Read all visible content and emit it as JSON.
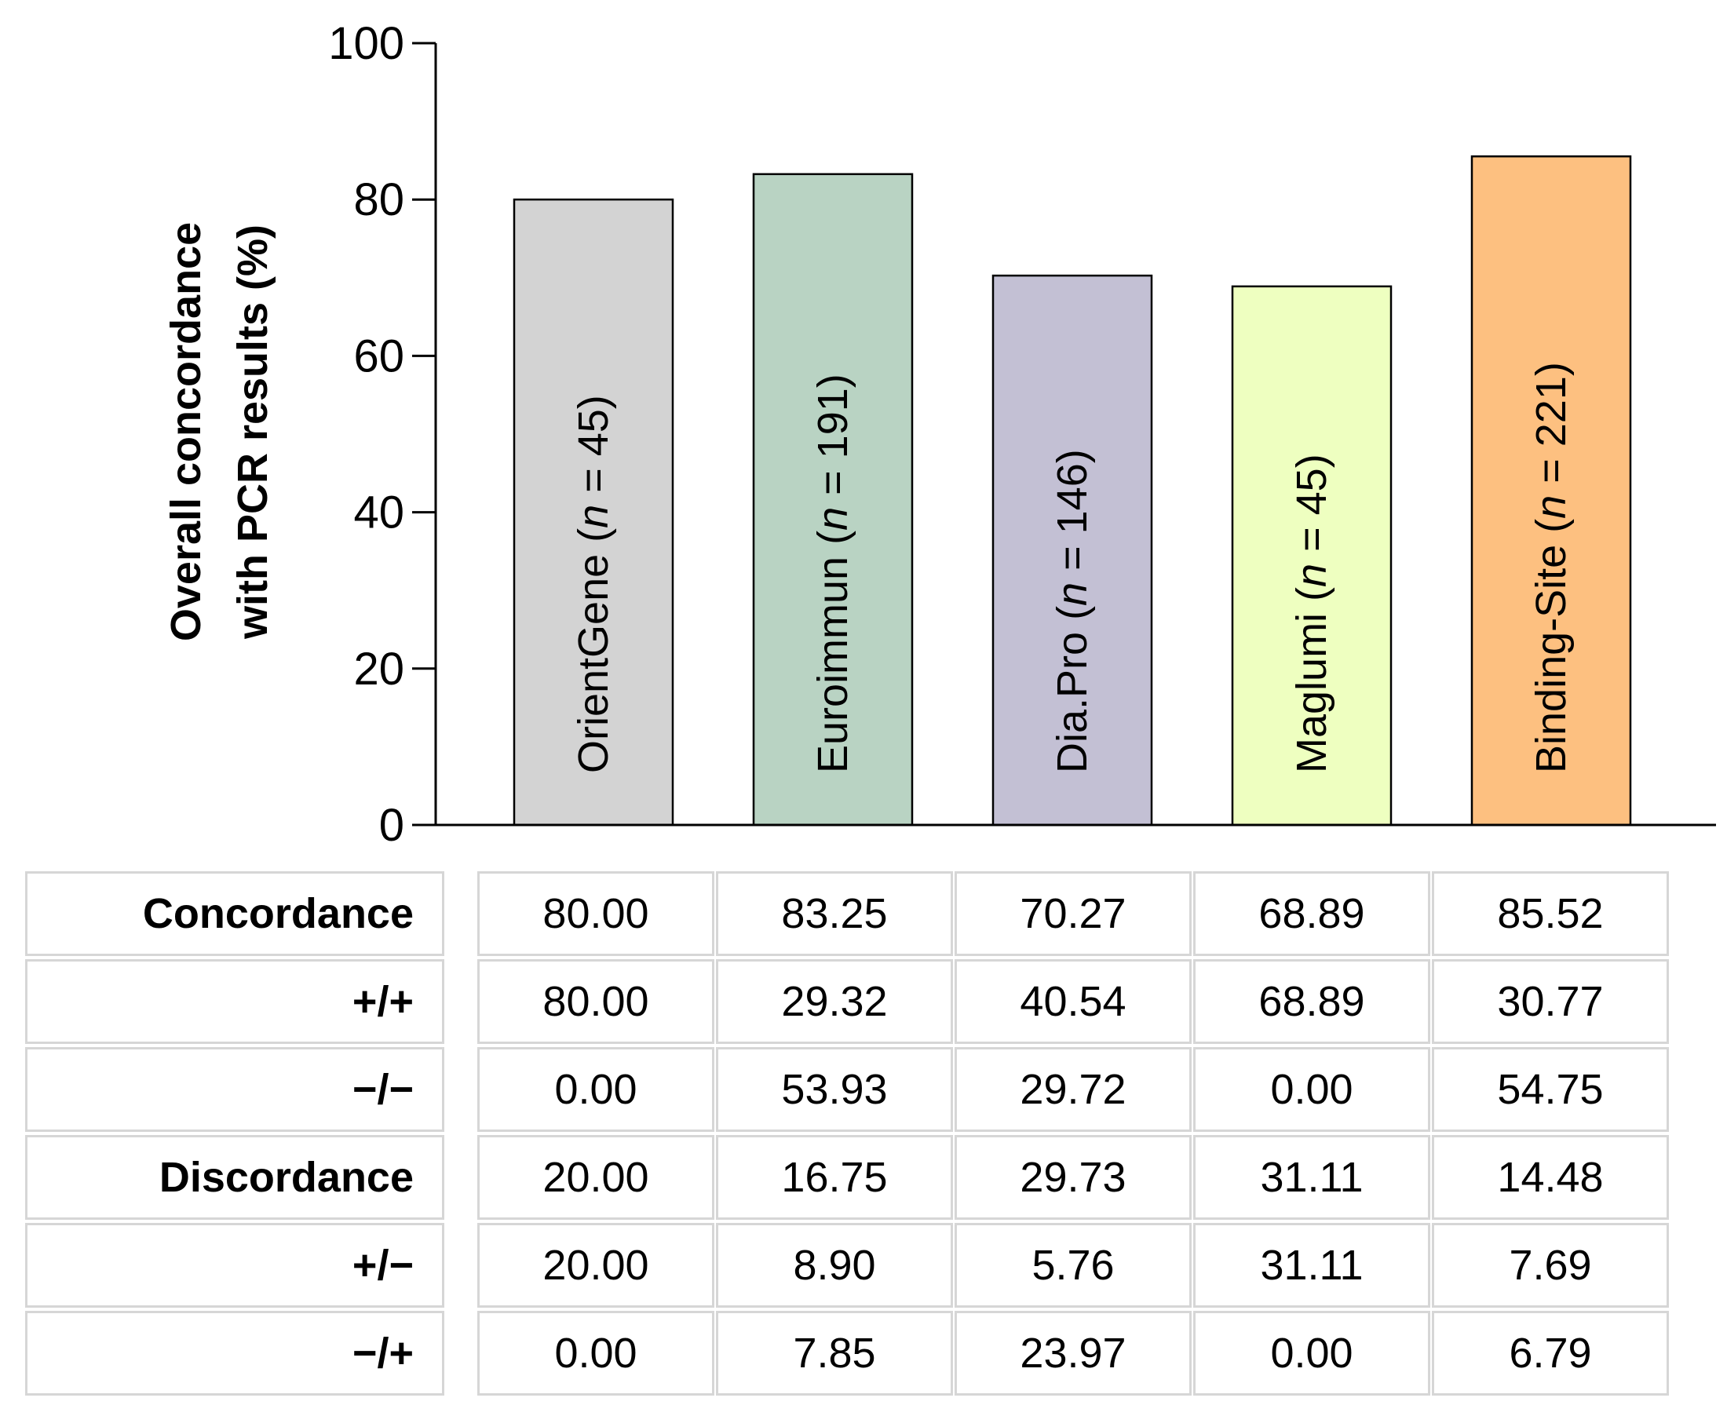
{
  "chart_data": {
    "type": "bar",
    "title": "",
    "xlabel": "",
    "ylabel": [
      "Overall concordance",
      "with PCR results (%)"
    ],
    "ylim": [
      0,
      100
    ],
    "yticks": [
      0,
      20,
      40,
      60,
      80,
      100
    ],
    "categories": [
      {
        "name": "OrientGene",
        "n": "45"
      },
      {
        "name": "Euroimmun",
        "n": "191"
      },
      {
        "name": "Dia.Pro",
        "n": "146"
      },
      {
        "name": "Maglumi",
        "n": "45"
      },
      {
        "name": "Binding-Site",
        "n": "221"
      }
    ],
    "values": [
      80.0,
      83.25,
      70.27,
      68.89,
      85.52
    ],
    "colors": [
      "#d3d3d3",
      "#b9d3c3",
      "#c3c0d4",
      "#eeffc0",
      "#fdc080"
    ]
  },
  "table": {
    "rows": [
      {
        "label": "Concordance",
        "values": [
          "80.00",
          "83.25",
          "70.27",
          "68.89",
          "85.52"
        ]
      },
      {
        "label": "+/+",
        "values": [
          "80.00",
          "29.32",
          "40.54",
          "68.89",
          "30.77"
        ]
      },
      {
        "label": "−/−",
        "values": [
          "0.00",
          "53.93",
          "29.72",
          "0.00",
          "54.75"
        ]
      },
      {
        "label": "Discordance",
        "values": [
          "20.00",
          "16.75",
          "29.73",
          "31.11",
          "14.48"
        ]
      },
      {
        "label": "+/−",
        "values": [
          "20.00",
          "8.90",
          "5.76",
          "31.11",
          "7.69"
        ]
      },
      {
        "label": "−/+",
        "values": [
          "0.00",
          "7.85",
          "23.97",
          "0.00",
          "6.79"
        ]
      }
    ]
  }
}
